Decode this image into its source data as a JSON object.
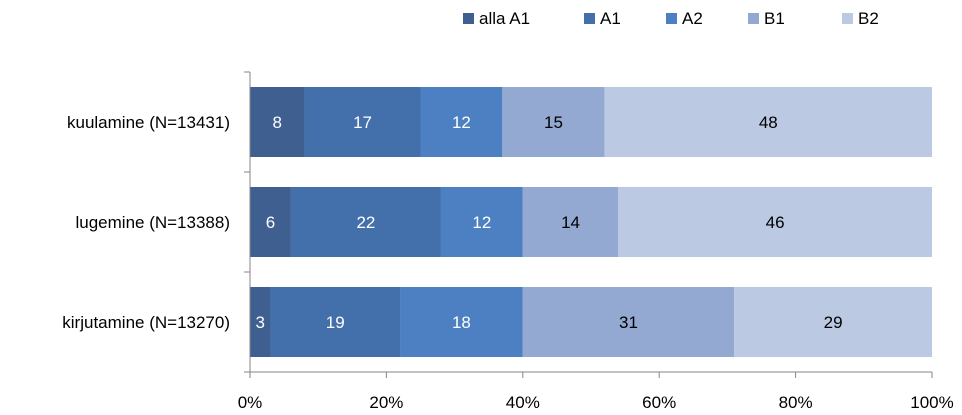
{
  "chart_data": {
    "type": "bar",
    "orientation": "horizontal",
    "stacked": "percent",
    "categories": [
      "kuulamine (N=13431)",
      "lugemine (N=13388)",
      "kirjutamine (N=13270)"
    ],
    "series": [
      {
        "name": "alla A1",
        "values": [
          8,
          6,
          3
        ],
        "color": "#3E5F8F"
      },
      {
        "name": "A1",
        "values": [
          17,
          22,
          19
        ],
        "color": "#4370AB"
      },
      {
        "name": "A2",
        "values": [
          12,
          12,
          18
        ],
        "color": "#4C80C2"
      },
      {
        "name": "B1",
        "values": [
          15,
          14,
          31
        ],
        "color": "#93A9D2"
      },
      {
        "name": "B2",
        "values": [
          48,
          46,
          29
        ],
        "color": "#BBC9E3"
      }
    ],
    "x_ticks": [
      "0%",
      "20%",
      "40%",
      "60%",
      "80%",
      "100%"
    ],
    "xlim": [
      0,
      100
    ],
    "title": "",
    "xlabel": "",
    "ylabel": "",
    "legend_position": "top",
    "grid": false,
    "data_label_color": "#FFFFFF",
    "data_label_dark_color": "#000000"
  }
}
